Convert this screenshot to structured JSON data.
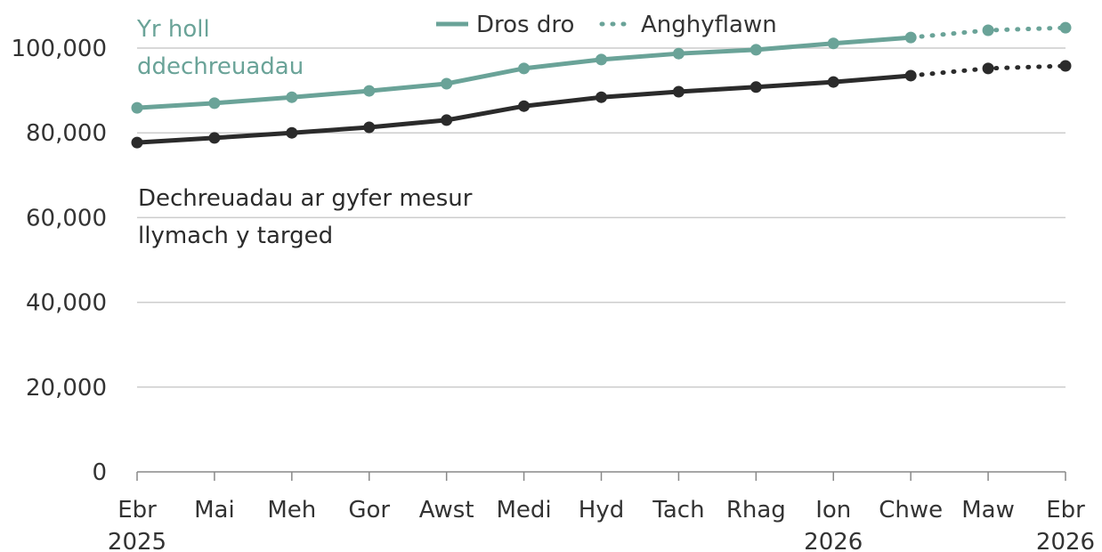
{
  "chart_data": {
    "type": "line",
    "categories": [
      "Ebr\n2025",
      "Mai",
      "Meh",
      "Gor",
      "Awst",
      "Medi",
      "Hyd",
      "Tach",
      "Rhag",
      "Ion\n2026",
      "Chwe",
      "Maw",
      "Ebr\n2026"
    ],
    "series": [
      {
        "name": "Yr holl\nddechreuadau",
        "color": "#6aa398",
        "values": [
          85900,
          87000,
          88400,
          89900,
          91600,
          95200,
          97300,
          98700,
          99600,
          101100,
          102500,
          104200,
          104800
        ]
      },
      {
        "name": "Dechreuadau ar gyfer mesur\nllymach y targed",
        "color": "#2b2b2b",
        "values": [
          77700,
          78800,
          80000,
          81300,
          83000,
          86300,
          88400,
          89700,
          90800,
          92000,
          93500,
          95200,
          95800
        ]
      }
    ],
    "legend": [
      {
        "label": "Dros dro",
        "style": "solid"
      },
      {
        "label": "Anghyflawn",
        "style": "dotted"
      }
    ],
    "incomplete_from": 10,
    "ylim": [
      0,
      100000
    ],
    "yticks": [
      0,
      {
        "value": 20000,
        "label": "20,000"
      },
      {
        "value": 40000,
        "label": "40,000"
      },
      {
        "value": 60000,
        "label": "60,000"
      },
      {
        "value": 80000,
        "label": "80,000"
      },
      {
        "value": 100000,
        "label": "100,000"
      }
    ],
    "grid": true
  }
}
